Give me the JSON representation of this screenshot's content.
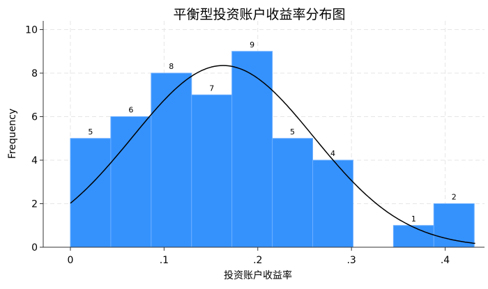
{
  "chart_data": {
    "type": "bar",
    "title": "平衡型投资账户收益率分布图",
    "xlabel": "投资账户收益率",
    "ylabel": "Frequency",
    "bin_start": 0,
    "bin_width": 0.0431,
    "values": [
      5,
      6,
      8,
      7,
      9,
      5,
      4,
      0,
      1,
      2
    ],
    "data_labels": [
      "5",
      "6",
      "8",
      "7",
      "9",
      "5",
      "4",
      "",
      "1",
      "2"
    ],
    "xlim": [
      -0.029,
      0.442
    ],
    "ylim": [
      0,
      10.4
    ],
    "xticks": [
      0,
      0.1,
      0.2,
      0.3,
      0.4
    ],
    "xtick_labels": [
      "0",
      ".1",
      ".2",
      ".3",
      ".4"
    ],
    "yticks": [
      0,
      2,
      4,
      6,
      8,
      10
    ],
    "ytick_labels": [
      "0",
      "2",
      "4",
      "6",
      "8",
      "10"
    ],
    "grid": true,
    "overlay": {
      "type": "normal-density",
      "mean": 0.163,
      "sd": 0.0968,
      "range": [
        0,
        0.432
      ]
    },
    "colors": {
      "bar": "#3592fd",
      "bar_edge": "#6aaeff",
      "curve": "#000000",
      "grid": "#e6e6e6"
    }
  }
}
